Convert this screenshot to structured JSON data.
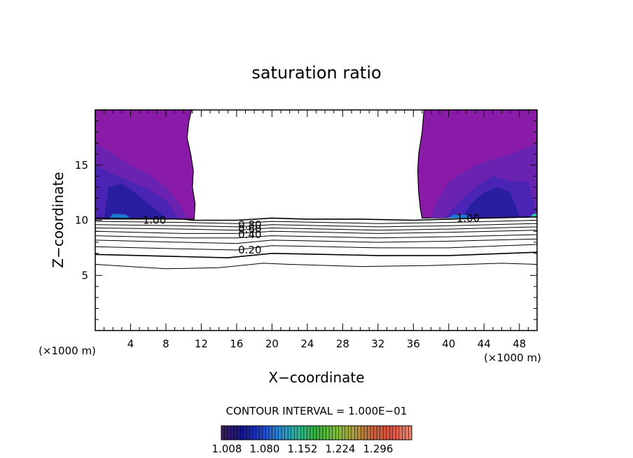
{
  "chart_data": {
    "type": "contour",
    "title": "saturation ratio",
    "xlabel": "X−coordinate",
    "ylabel": "Z−coordinate",
    "x_unit_left": "(×1000 m)",
    "x_unit_right": "(×1000 m)",
    "xlim": [
      0,
      50
    ],
    "ylim": [
      0,
      20
    ],
    "x_ticks": [
      4,
      8,
      12,
      16,
      20,
      24,
      28,
      32,
      36,
      40,
      44,
      48
    ],
    "x_tick_labels": [
      "4",
      "8",
      "12",
      "16",
      "20",
      "24",
      "28",
      "32",
      "36",
      "40",
      "44",
      "48"
    ],
    "y_ticks": [
      5,
      10,
      15
    ],
    "y_tick_labels": [
      "5",
      "10",
      "15"
    ],
    "contour_interval_text": "CONTOUR INTERVAL = 1.000E−01",
    "contour_labels": [
      {
        "text": "1.00",
        "x": 6.7,
        "z": 10.0
      },
      {
        "text": "0.80",
        "x": 17.5,
        "z": 9.6
      },
      {
        "text": "0.60",
        "x": 17.5,
        "z": 9.2
      },
      {
        "text": "0.40",
        "x": 17.5,
        "z": 8.7
      },
      {
        "text": "0.20",
        "x": 17.5,
        "z": 7.3
      },
      {
        "text": "1.00",
        "x": 42.2,
        "z": 10.2
      }
    ],
    "contours": [
      {
        "level": 1.0,
        "points": [
          [
            0,
            10.2
          ],
          [
            10,
            10.1
          ],
          [
            11,
            10.0
          ],
          [
            16,
            10.0
          ],
          [
            20,
            10.2
          ],
          [
            24,
            10.1
          ],
          [
            30,
            10.1
          ],
          [
            36,
            10.0
          ],
          [
            40,
            10.1
          ],
          [
            44,
            10.2
          ],
          [
            50,
            10.3
          ]
        ]
      },
      {
        "level": 0.9,
        "points": [
          [
            0,
            9.9
          ],
          [
            10,
            9.8
          ],
          [
            16,
            9.7
          ],
          [
            20,
            9.9
          ],
          [
            26,
            9.8
          ],
          [
            32,
            9.7
          ],
          [
            40,
            9.8
          ],
          [
            50,
            10.0
          ]
        ]
      },
      {
        "level": 0.8,
        "points": [
          [
            0,
            9.6
          ],
          [
            10,
            9.5
          ],
          [
            16,
            9.4
          ],
          [
            20,
            9.6
          ],
          [
            26,
            9.5
          ],
          [
            32,
            9.4
          ],
          [
            40,
            9.5
          ],
          [
            50,
            9.7
          ]
        ]
      },
      {
        "level": 0.7,
        "points": [
          [
            0,
            9.3
          ],
          [
            10,
            9.2
          ],
          [
            16,
            9.1
          ],
          [
            20,
            9.3
          ],
          [
            26,
            9.2
          ],
          [
            32,
            9.1
          ],
          [
            40,
            9.2
          ],
          [
            50,
            9.4
          ]
        ]
      },
      {
        "level": 0.6,
        "points": [
          [
            0,
            9.0
          ],
          [
            10,
            8.8
          ],
          [
            16,
            8.8
          ],
          [
            20,
            9.0
          ],
          [
            26,
            8.9
          ],
          [
            32,
            8.8
          ],
          [
            40,
            8.9
          ],
          [
            50,
            9.1
          ]
        ]
      },
      {
        "level": 0.5,
        "points": [
          [
            0,
            8.6
          ],
          [
            10,
            8.4
          ],
          [
            16,
            8.4
          ],
          [
            20,
            8.6
          ],
          [
            26,
            8.5
          ],
          [
            32,
            8.4
          ],
          [
            40,
            8.5
          ],
          [
            50,
            8.7
          ]
        ]
      },
      {
        "level": 0.4,
        "points": [
          [
            0,
            8.2
          ],
          [
            10,
            8.0
          ],
          [
            16,
            7.9
          ],
          [
            20,
            8.2
          ],
          [
            26,
            8.1
          ],
          [
            32,
            8.0
          ],
          [
            40,
            8.1
          ],
          [
            50,
            8.3
          ]
        ]
      },
      {
        "level": 0.3,
        "points": [
          [
            0,
            7.6
          ],
          [
            10,
            7.4
          ],
          [
            16,
            7.3
          ],
          [
            20,
            7.7
          ],
          [
            26,
            7.6
          ],
          [
            32,
            7.5
          ],
          [
            40,
            7.5
          ],
          [
            50,
            7.8
          ]
        ]
      },
      {
        "level": 0.2,
        "points": [
          [
            0,
            6.9
          ],
          [
            10,
            6.7
          ],
          [
            15,
            6.6
          ],
          [
            20,
            7.0
          ],
          [
            26,
            6.9
          ],
          [
            32,
            6.8
          ],
          [
            40,
            6.8
          ],
          [
            50,
            7.1
          ]
        ]
      },
      {
        "level": 0.1,
        "points": [
          [
            0,
            6.0
          ],
          [
            8,
            5.6
          ],
          [
            14,
            5.7
          ],
          [
            19,
            6.1
          ],
          [
            22,
            6.0
          ],
          [
            30,
            5.8
          ],
          [
            38,
            5.9
          ],
          [
            46,
            6.1
          ],
          [
            50,
            6.0
          ]
        ]
      }
    ],
    "colorbar": {
      "tick_labels": [
        "1.008",
        "1.080",
        "1.152",
        "1.224",
        "1.296"
      ],
      "colors": [
        "#3a1a5e",
        "#14148c",
        "#1e3cc8",
        "#2a8ad8",
        "#2ab49a",
        "#36b43c",
        "#7ac03a",
        "#b0a042",
        "#c8643c",
        "#e05040",
        "#e88870"
      ]
    },
    "fill_colors": {
      "outer": "#8a1aa8",
      "mid": "#6a22b0",
      "inner": "#4a24b4",
      "core": "#2a1ea0",
      "edge": "#1a7ad0",
      "glow": "#28c0a0"
    }
  }
}
